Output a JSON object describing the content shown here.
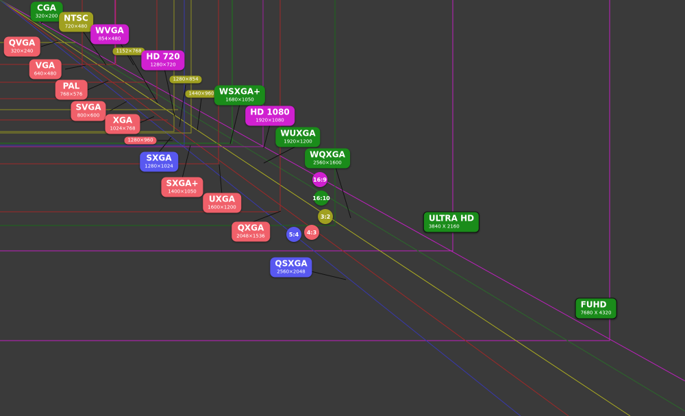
{
  "nodes": [
    {
      "name": "CGA",
      "resolution": "320×200"
    },
    {
      "name": "NTSC",
      "resolution": "720×480"
    },
    {
      "name": "QVGA",
      "resolution": "320×240"
    },
    {
      "name": "WVGA",
      "resolution": "854×480"
    },
    {
      "resolution": "1152×768"
    },
    {
      "name": "HD 720",
      "resolution": "1280×720"
    },
    {
      "name": "VGA",
      "resolution": "640×480"
    },
    {
      "resolution": "1280×854"
    },
    {
      "name": "PAL",
      "resolution": "768×576"
    },
    {
      "resolution": "1440×960"
    },
    {
      "name": "WSXGA+",
      "resolution": "1680×1050"
    },
    {
      "name": "SVGA",
      "resolution": "800×600"
    },
    {
      "name": "HD 1080",
      "resolution": "1920×1080"
    },
    {
      "name": "XGA",
      "resolution": "1024×768"
    },
    {
      "resolution": "1280×960"
    },
    {
      "name": "WUXGA",
      "resolution": "1920×1200"
    },
    {
      "name": "SXGA",
      "resolution": "1280×1024"
    },
    {
      "name": "WQXGA",
      "resolution": "2560×1600"
    },
    {
      "name": "16:9"
    },
    {
      "name": "SXGA+",
      "resolution": "1400×1050"
    },
    {
      "name": "16:10"
    },
    {
      "name": "UXGA",
      "resolution": "1600×1200"
    },
    {
      "name": "3:2"
    },
    {
      "name": "ULTRA HD",
      "resolution": "3840 X 2160"
    },
    {
      "name": "QXGA",
      "resolution": "2048×1536"
    },
    {
      "name": "4:3"
    },
    {
      "name": "5:4"
    },
    {
      "name": "QSXGA",
      "resolution": "2560×2048"
    },
    {
      "name": "FUHD",
      "resolution": "7680 X 4320"
    }
  ]
}
